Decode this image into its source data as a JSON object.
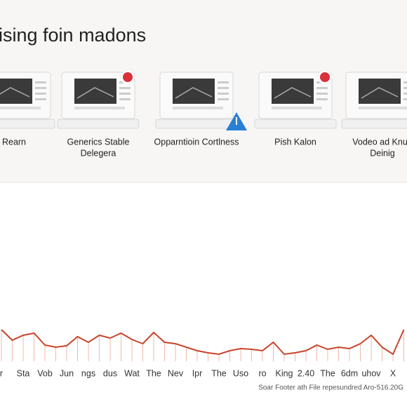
{
  "header": {
    "title": "ising foin madons"
  },
  "cards": [
    {
      "label": [
        "Rearn"
      ]
    },
    {
      "label": [
        "Generics Stable",
        "Delegera"
      ]
    },
    {
      "label": [
        "Opparntioin Cortlness"
      ]
    },
    {
      "label": [
        "Pish Kalon"
      ]
    },
    {
      "label": [
        "Vodeo ad Knue",
        "Deinig"
      ]
    }
  ],
  "chart_data": {
    "type": "line",
    "color": "#c8452a",
    "categories": [
      "r",
      null,
      "Sta",
      null,
      "Vob",
      null,
      "Jun",
      null,
      "ngs",
      null,
      "dus",
      null,
      "Wat",
      null,
      "The",
      null,
      "Nev",
      null,
      "Ipr",
      null,
      "The",
      null,
      "Uso",
      null,
      "ro",
      null,
      "King",
      null,
      "2.40",
      null,
      "The",
      null,
      "6dm",
      null,
      "uhov",
      null,
      "X",
      null
    ],
    "values": [
      70,
      55,
      62,
      65,
      48,
      45,
      47,
      60,
      52,
      62,
      58,
      65,
      56,
      50,
      66,
      52,
      50,
      45,
      40,
      37,
      35,
      40,
      43,
      42,
      40,
      52,
      35,
      37,
      40,
      48,
      42,
      45,
      43,
      50,
      62,
      45,
      35,
      70
    ]
  },
  "footer": "Soar Footer ath File repesundred Aro-516.20G"
}
